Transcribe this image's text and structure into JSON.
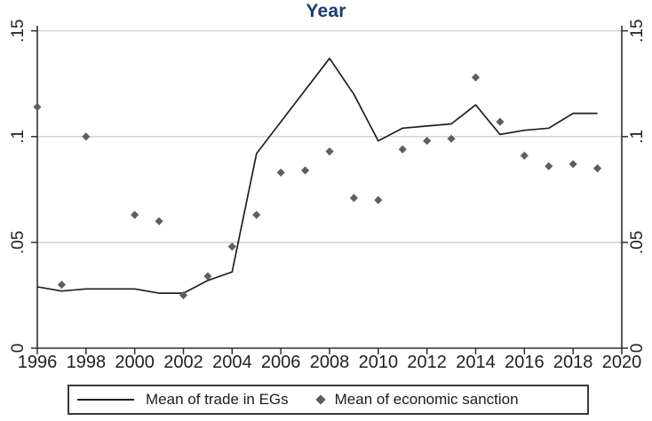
{
  "chart_data": {
    "type": "line+scatter",
    "title": "Year",
    "title_color": "#1a3d6e",
    "background": "#ffffff",
    "x_years": [
      1996,
      1997,
      1998,
      1999,
      2000,
      2001,
      2002,
      2003,
      2004,
      2005,
      2006,
      2007,
      2008,
      2009,
      2010,
      2011,
      2012,
      2013,
      2014,
      2015,
      2016,
      2017,
      2018,
      2019
    ],
    "series": [
      {
        "name": "Mean of trade in EGs",
        "type": "line",
        "color": "#1f1f1f",
        "values": [
          0.029,
          0.027,
          0.028,
          0.028,
          0.028,
          0.026,
          0.026,
          0.032,
          0.036,
          0.092,
          0.107,
          0.122,
          0.137,
          0.12,
          0.098,
          0.104,
          0.105,
          0.106,
          0.115,
          0.101,
          0.103,
          0.104,
          0.111,
          0.111
        ]
      },
      {
        "name": "Mean of economic sanction",
        "type": "scatter",
        "marker": "diamond",
        "color": "#5f5f5f",
        "values": [
          0.114,
          0.03,
          0.1,
          null,
          0.063,
          0.06,
          0.025,
          0.034,
          0.048,
          0.063,
          0.083,
          0.084,
          0.093,
          0.071,
          0.07,
          0.094,
          0.098,
          0.099,
          0.128,
          0.107,
          0.091,
          0.086,
          0.087,
          0.085
        ]
      }
    ],
    "xlim": [
      1996,
      2020
    ],
    "ylim": [
      0,
      0.15
    ],
    "yticks": {
      "values": [
        0,
        0.05,
        0.1,
        0.15
      ],
      "labels": [
        "0",
        ".05",
        ".1",
        ".15"
      ]
    },
    "xticks": {
      "values": [
        1996,
        1998,
        2000,
        2002,
        2004,
        2006,
        2008,
        2010,
        2012,
        2014,
        2016,
        2018,
        2020
      ],
      "labels": [
        "1996",
        "1998",
        "2000",
        "2002",
        "2004",
        "2006",
        "2008",
        "2010",
        "2012",
        "2014",
        "2016",
        "2018",
        "2020"
      ]
    },
    "grid": {
      "horizontal": true,
      "color": "#c7c7c7"
    },
    "axis_color": "#2e2e2e",
    "legend": {
      "position": "bottom",
      "border_color": "#3a3a3a"
    }
  }
}
